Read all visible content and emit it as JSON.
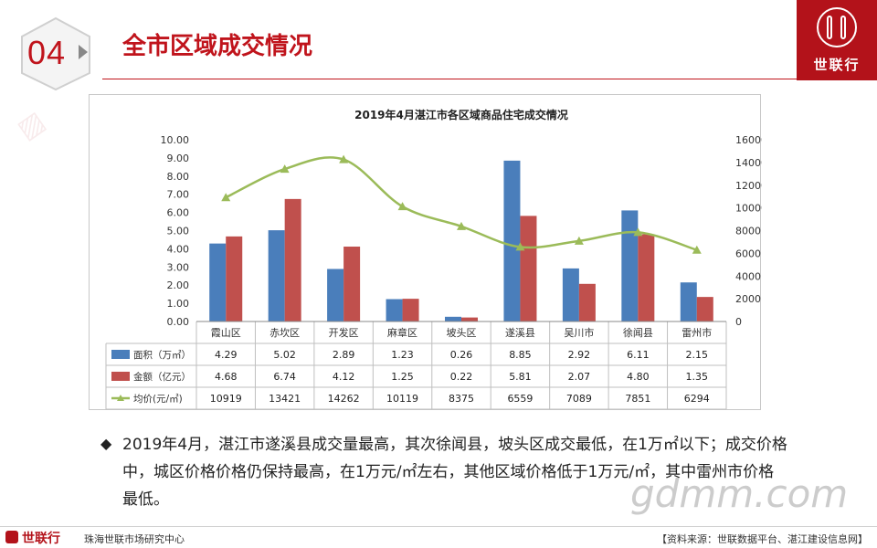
{
  "page": {
    "section_number": "04",
    "title": "全市区域成交情况",
    "brand": "世联行",
    "footer_center": "珠海世联市场研究中心",
    "footer_source": "【资料来源：世联数据平台、湛江建设信息网】",
    "watermark_overlay": "gdmm.com",
    "summary": "2019年4月，湛江市遂溪县成交量最高，其次徐闻县，坡头区成交最低，在1万㎡以下；成交价格中，城区价格价格仍保持最高，在1万元/㎡左右，其他区域价格低于1万元/㎡，其中雷州市价格最低。"
  },
  "colors": {
    "brand_red": "#b3121a",
    "area": "#4a7ebb",
    "amount": "#c0504d",
    "price": "#9bbb59"
  },
  "chart_data": {
    "type": "bar",
    "title": "2019年4月湛江市各区域商品住宅成交情况",
    "categories": [
      "霞山区",
      "赤坎区",
      "开发区",
      "麻章区",
      "坡头区",
      "遂溪县",
      "吴川市",
      "徐闻县",
      "雷州市"
    ],
    "series": [
      {
        "name": "面积（万㎡）",
        "type": "bar",
        "axis": "left",
        "values": [
          4.29,
          5.02,
          2.89,
          1.23,
          0.26,
          8.85,
          2.92,
          6.11,
          2.15
        ]
      },
      {
        "name": "金额（亿元）",
        "type": "bar",
        "axis": "left",
        "values": [
          4.68,
          6.74,
          4.12,
          1.25,
          0.22,
          5.81,
          2.07,
          4.8,
          1.35
        ]
      },
      {
        "name": "均价(元/㎡)",
        "type": "line",
        "axis": "right",
        "values": [
          10919,
          13421,
          14262,
          10119,
          8375,
          6559,
          7089,
          7851,
          6294
        ]
      }
    ],
    "left_ticks": [
      "0.00",
      "1.00",
      "2.00",
      "3.00",
      "4.00",
      "5.00",
      "6.00",
      "7.00",
      "8.00",
      "9.00",
      "10.00"
    ],
    "right_ticks": [
      "0",
      "2000",
      "4000",
      "6000",
      "8000",
      "10000",
      "12000",
      "14000",
      "16000"
    ],
    "ylim_left": [
      0,
      10
    ],
    "ylim_right": [
      0,
      16000
    ],
    "data_table": true,
    "legend": "data-table"
  }
}
